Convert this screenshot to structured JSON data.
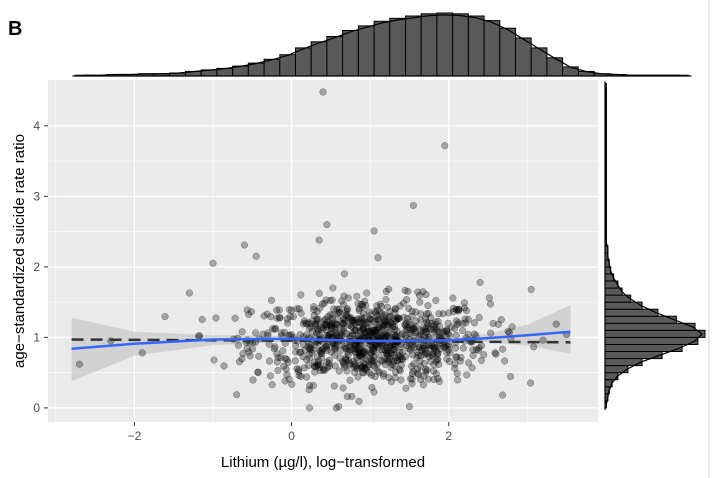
{
  "panel_label": "B",
  "chart_data": {
    "type": "scatter",
    "xlabel": "Lithium (µg/l), log−transformed",
    "ylabel": "age−standardized suicide rate ratio",
    "xlim": [
      -3.1,
      3.9
    ],
    "ylim": [
      -0.2,
      4.65
    ],
    "x_ticks": [
      -2,
      0,
      2
    ],
    "x_tick_labels": [
      "−2",
      "0",
      "2"
    ],
    "y_ticks": [
      0,
      1,
      2,
      3,
      4
    ],
    "y_tick_labels": [
      "0",
      "1",
      "2",
      "3",
      "4"
    ],
    "grid": true,
    "colors": {
      "panel_bg": "#ebebeb",
      "grid": "#ffffff",
      "point": "#000000",
      "smooth": "#3366ff",
      "ribbon": "#bfbfbf",
      "reference": "#333333",
      "histogram": "#595959"
    },
    "smooth_line": {
      "x": [
        -2.8,
        -2.0,
        -1.0,
        0.0,
        0.6,
        1.0,
        1.5,
        2.0,
        2.5,
        3.0,
        3.55
      ],
      "y": [
        0.84,
        0.91,
        0.97,
        0.98,
        0.96,
        0.95,
        0.95,
        0.96,
        0.99,
        1.03,
        1.08
      ],
      "ci_lower": [
        0.38,
        0.74,
        0.89,
        0.94,
        0.93,
        0.93,
        0.93,
        0.93,
        0.93,
        0.88,
        0.77
      ],
      "ci_upper": [
        1.28,
        1.08,
        1.03,
        1.02,
        0.99,
        0.98,
        0.98,
        0.99,
        1.05,
        1.18,
        1.46
      ]
    },
    "reference_line": {
      "x": [
        -2.8,
        3.55
      ],
      "y": [
        0.97,
        0.93
      ]
    },
    "outliers": [
      {
        "x": 0.4,
        "y": 4.48
      },
      {
        "x": 1.95,
        "y": 3.72
      },
      {
        "x": 1.55,
        "y": 2.87
      },
      {
        "x": 0.45,
        "y": 2.6
      },
      {
        "x": 1.05,
        "y": 2.51
      },
      {
        "x": -0.6,
        "y": 2.31
      },
      {
        "x": 0.35,
        "y": 2.38
      },
      {
        "x": -1.0,
        "y": 2.05
      },
      {
        "x": -0.45,
        "y": 2.15
      },
      {
        "x": 1.1,
        "y": 2.13
      },
      {
        "x": 2.4,
        "y": 1.78
      },
      {
        "x": 3.05,
        "y": 1.68
      },
      {
        "x": -1.3,
        "y": 1.63
      },
      {
        "x": -2.7,
        "y": 0.62
      },
      {
        "x": -1.9,
        "y": 0.78
      },
      {
        "x": -2.3,
        "y": 0.95
      },
      {
        "x": 1.5,
        "y": 0.02
      },
      {
        "x": 0.6,
        "y": 0.02
      },
      {
        "x": 3.2,
        "y": 0.96
      },
      {
        "x": 3.5,
        "y": 1.04
      }
    ],
    "cloud": {
      "n": 900,
      "x_mean": 1.0,
      "x_sd": 0.75,
      "y_mean": 0.95,
      "y_sd": 0.3
    },
    "x_histogram": {
      "bin_start": -2.75,
      "bin_width": 0.2,
      "counts": [
        1,
        1,
        2,
        2,
        3,
        3,
        4,
        6,
        8,
        10,
        13,
        17,
        22,
        28,
        37,
        45,
        52,
        60,
        66,
        72,
        76,
        79,
        82,
        83,
        82,
        79,
        73,
        63,
        50,
        37,
        24,
        12,
        6,
        3,
        2,
        1,
        1,
        1,
        1
      ]
    },
    "y_histogram": {
      "bin_start": 0.0,
      "bin_width": 0.1,
      "counts": [
        1,
        2,
        3,
        5,
        9,
        16,
        26,
        40,
        54,
        65,
        70,
        63,
        50,
        37,
        26,
        18,
        12,
        9,
        6,
        4,
        3,
        2,
        2,
        1,
        1,
        1,
        1,
        1,
        1,
        1,
        1,
        1,
        1,
        1,
        1,
        1,
        1,
        1,
        1,
        1,
        1,
        1,
        1,
        1,
        1,
        1
      ]
    }
  }
}
